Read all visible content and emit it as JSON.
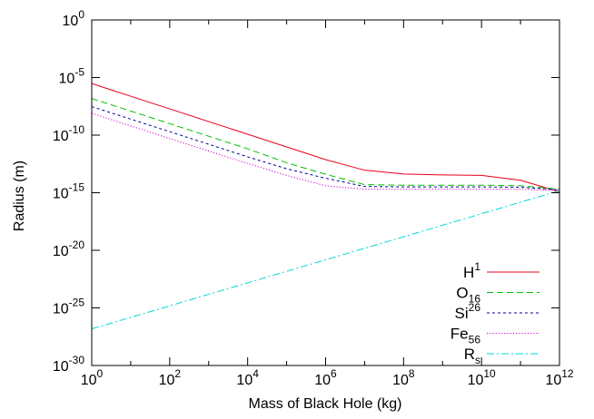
{
  "chart_data": {
    "type": "line",
    "title": "",
    "xlabel": "Mass of Black Hole (kg)",
    "ylabel": "Radius (m)",
    "xscale": "log",
    "yscale": "log",
    "xlim": [
      1,
      1000000000000.0
    ],
    "ylim": [
      1e-30,
      1
    ],
    "x_ticks": [
      {
        "base": "10",
        "exp": "0",
        "value": 1
      },
      {
        "base": "10",
        "exp": "2",
        "value": 100
      },
      {
        "base": "10",
        "exp": "4",
        "value": 10000
      },
      {
        "base": "10",
        "exp": "6",
        "value": 1000000
      },
      {
        "base": "10",
        "exp": "8",
        "value": 100000000
      },
      {
        "base": "10",
        "exp": "10",
        "value": 10000000000
      },
      {
        "base": "10",
        "exp": "12",
        "value": 1000000000000
      }
    ],
    "y_ticks": [
      {
        "base": "10",
        "exp": "0",
        "value": 1
      },
      {
        "base": "10",
        "exp": "-5",
        "value": 1e-05
      },
      {
        "base": "10",
        "exp": "-10",
        "value": 1e-10
      },
      {
        "base": "10",
        "exp": "-15",
        "value": 1e-15
      },
      {
        "base": "10",
        "exp": "-20",
        "value": 1e-20
      },
      {
        "base": "10",
        "exp": "-25",
        "value": 1e-25
      },
      {
        "base": "10",
        "exp": "-30",
        "value": 1e-30
      }
    ],
    "grid": false,
    "legend_position": "bottom-right",
    "series": [
      {
        "name": "H1",
        "label_base": "H",
        "label_sup": "1",
        "label_sub": "",
        "color": "#e8001c",
        "dash": "solid",
        "x": [
          1,
          100.0,
          10000.0,
          1000000.0,
          10000000.0,
          100000000.0,
          1000000000.0,
          10000000000.0,
          100000000000.0,
          1000000000000.0
        ],
        "y": [
          3e-06,
          1.9e-08,
          1.2e-10,
          7.5e-13,
          9e-14,
          4.2e-14,
          3.5e-14,
          3.2e-14,
          1.2e-14,
          1.2e-15
        ]
      },
      {
        "name": "O16",
        "label_base": "O",
        "label_sup": "",
        "label_sub": "16",
        "color": "#00c000",
        "dash": "dashed",
        "x": [
          1,
          100.0,
          10000.0,
          100000.0,
          1000000.0,
          10000000.0,
          100000000.0,
          10000000000.0,
          100000000000.0,
          1000000000000.0
        ],
        "y": [
          1.5e-07,
          1e-09,
          6.5e-12,
          4e-13,
          4e-14,
          5e-15,
          4.5e-15,
          4.5e-15,
          4e-15,
          2e-15
        ]
      },
      {
        "name": "Si26",
        "label_base": "Si",
        "label_sup": "26",
        "label_sub": "",
        "color": "#00009c",
        "dash": "shortdash",
        "x": [
          1,
          100.0,
          10000.0,
          100000.0,
          1000000.0,
          10000000.0,
          100000000.0,
          10000000000.0,
          100000000000.0,
          1000000000000.0
        ],
        "y": [
          3e-08,
          2e-10,
          1.3e-12,
          1.2e-13,
          1.8e-14,
          3.5e-15,
          3.2e-15,
          3.2e-15,
          3e-15,
          1.8e-15
        ]
      },
      {
        "name": "Fe56",
        "label_base": "Fe",
        "label_sup": "",
        "label_sub": "56",
        "color": "#d000d0",
        "dash": "dotted",
        "x": [
          1,
          100.0,
          10000.0,
          100000.0,
          1000000.0,
          10000000.0,
          100000000.0,
          10000000000.0,
          100000000000.0,
          1000000000000.0
        ],
        "y": [
          8e-09,
          5e-11,
          3.5e-13,
          3.2e-14,
          4e-15,
          2e-15,
          2e-15,
          2e-15,
          2e-15,
          1.6e-15
        ]
      },
      {
        "name": "Rs",
        "label_base": "R",
        "label_sup": "",
        "label_sub": "s",
        "color": "#00d8d8",
        "dash": "dashdot",
        "x": [
          1,
          1000000000000.0
        ],
        "y": [
          1.5e-27,
          1.5e-15
        ]
      }
    ]
  }
}
